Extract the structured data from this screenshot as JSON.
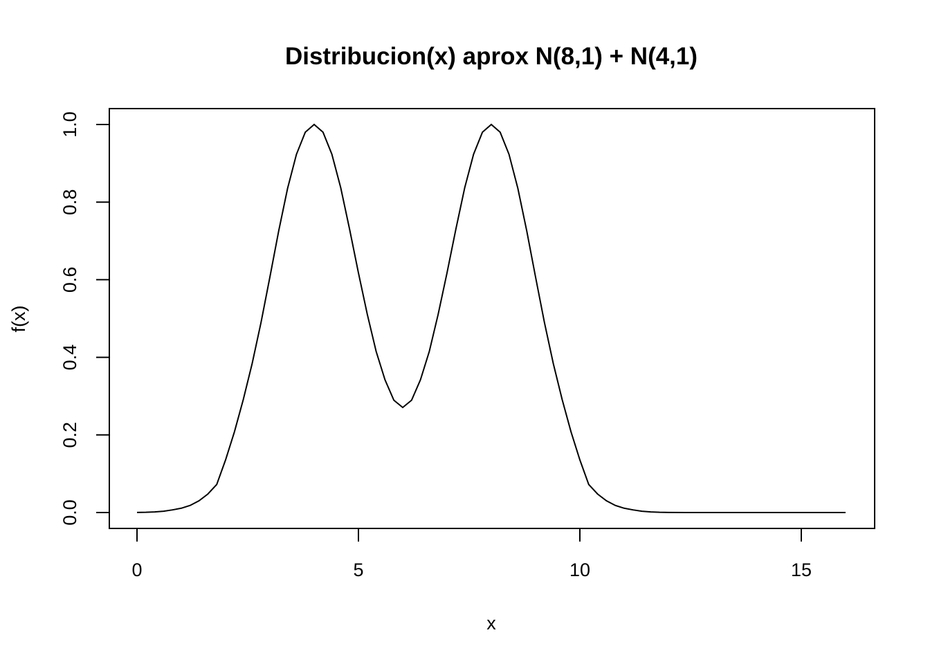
{
  "chart_data": {
    "type": "line",
    "title": "Distribucion(x) aprox N(8,1) + N(4,1)",
    "xlabel": "x",
    "ylabel": "f(x)",
    "xlim": [
      0,
      16
    ],
    "ylim": [
      0,
      1
    ],
    "x_ticks": [
      0,
      5,
      10,
      15
    ],
    "x_tick_labels": [
      "0",
      "5",
      "10",
      "15"
    ],
    "y_ticks": [
      0,
      0.2,
      0.4,
      0.6,
      0.8,
      1.0
    ],
    "y_tick_labels": [
      "0.0",
      "0.2",
      "0.4",
      "0.6",
      "0.8",
      "1.0"
    ],
    "grid": false,
    "legend": "none",
    "series": [
      {
        "x": [
          0,
          0.2,
          0.4,
          0.6,
          0.8,
          1.0,
          1.2,
          1.4,
          1.6,
          1.8,
          2.0,
          2.2,
          2.4,
          2.6,
          2.8,
          3.0,
          3.2,
          3.4,
          3.6,
          3.8,
          4.0,
          4.2,
          4.4,
          4.6,
          4.8,
          5.0,
          5.2,
          5.4,
          5.6,
          5.8,
          6.0,
          6.2,
          6.4,
          6.6,
          6.8,
          7.0,
          7.2,
          7.4,
          7.6,
          7.8,
          8.0,
          8.2,
          8.4,
          8.6,
          8.8,
          9.0,
          9.2,
          9.4,
          9.6,
          9.8,
          10.0,
          10.2,
          10.4,
          10.6,
          10.8,
          11.0,
          11.2,
          11.4,
          11.6,
          11.8,
          12.0,
          12.4,
          12.8,
          13.2,
          13.6,
          14.0,
          14.4,
          14.8,
          15.2,
          15.6,
          16.0
        ],
        "y": [
          0.0003,
          0.0007,
          0.0016,
          0.0034,
          0.0068,
          0.0111,
          0.0183,
          0.0302,
          0.0477,
          0.0723,
          0.1357,
          0.208,
          0.2913,
          0.3839,
          0.4896,
          0.6065,
          0.7261,
          0.8353,
          0.9231,
          0.9802,
          1.0,
          0.9802,
          0.9234,
          0.8371,
          0.7302,
          0.6176,
          0.5108,
          0.4151,
          0.342,
          0.2894,
          0.2707,
          0.2894,
          0.342,
          0.4151,
          0.5108,
          0.6176,
          0.7302,
          0.8371,
          0.9234,
          0.9802,
          1.0,
          0.9802,
          0.9231,
          0.8353,
          0.7261,
          0.6065,
          0.4896,
          0.3839,
          0.2913,
          0.208,
          0.1357,
          0.0723,
          0.0477,
          0.0302,
          0.0183,
          0.0111,
          0.0068,
          0.0034,
          0.0016,
          0.0007,
          0.0003,
          0.0001,
          0.0,
          0.0,
          0.0,
          0.0,
          0.0,
          0.0,
          0.0,
          0.0,
          0.0
        ]
      }
    ]
  }
}
